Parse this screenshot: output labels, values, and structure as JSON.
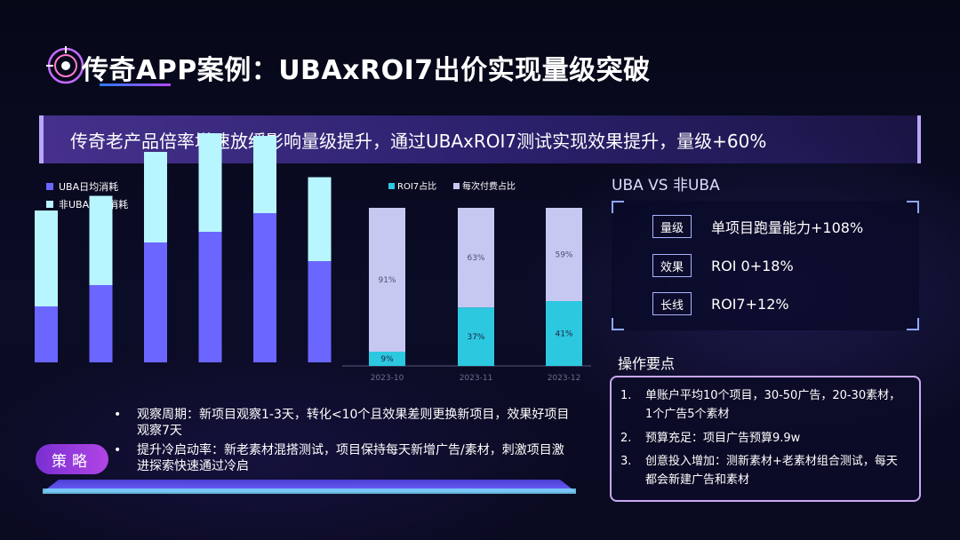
{
  "title": "传奇APP案例：UBAxROI7出价实现量级突破",
  "banner": "传奇老产品倍率增速放缓影响量级提升，通过UBAxROI7测试实现效果提升，量级+60%",
  "colors": {
    "uba": "#6b66ff",
    "non_uba": "#b7f5ff",
    "roi7": "#2cc8e0",
    "pay": "#c7c8f2"
  },
  "chart_data": [
    {
      "type": "bar",
      "stacked": true,
      "legend_position": "top-left",
      "series": [
        {
          "name": "UBA日均消耗",
          "values": [
            42,
            58,
            90,
            98,
            112,
            76
          ]
        },
        {
          "name": "非UBA日均消耗",
          "values": [
            72,
            67,
            68,
            74,
            58,
            63
          ]
        }
      ]
    },
    {
      "type": "bar",
      "stacked": true,
      "percent": true,
      "legend_position": "top",
      "categories": [
        "2023-10",
        "2023-11",
        "2023-12"
      ],
      "series": [
        {
          "name": "ROI7占比",
          "values": [
            9,
            37,
            41
          ],
          "labels": [
            "9%",
            "37%",
            "41%"
          ]
        },
        {
          "name": "每次付费占比",
          "values": [
            91,
            63,
            59
          ],
          "labels": [
            "91%",
            "63%",
            "59%"
          ]
        }
      ]
    }
  ],
  "comparison": {
    "title": "UBA VS 非UBA",
    "rows": [
      {
        "tag": "量级",
        "value": "单项目跑量能力+108%"
      },
      {
        "tag": "效果",
        "value": "ROI 0+18%"
      },
      {
        "tag": "长线",
        "value": "ROI7+12%"
      }
    ]
  },
  "ops": {
    "title": "操作要点",
    "items": [
      {
        "num": "1.",
        "text": "单账户平均10个项目，30-50广告，20-30素材，1个广告5个素材"
      },
      {
        "num": "2.",
        "text": "预算充足：项目广告预算9.9w"
      },
      {
        "num": "3.",
        "text": "创意投入增加：测新素材+老素材组合测试，每天都会新建广告和素材"
      }
    ]
  },
  "strategy": {
    "label": "策略",
    "bullets": [
      "观察周期：新项目观察1-3天，转化<10个且效果差则更换新项目，效果好项目观察7天",
      "提升冷启动率：新老素材混搭测试，项目保持每天新增广告/素材，刺激项目激进探索快速通过冷启"
    ]
  }
}
